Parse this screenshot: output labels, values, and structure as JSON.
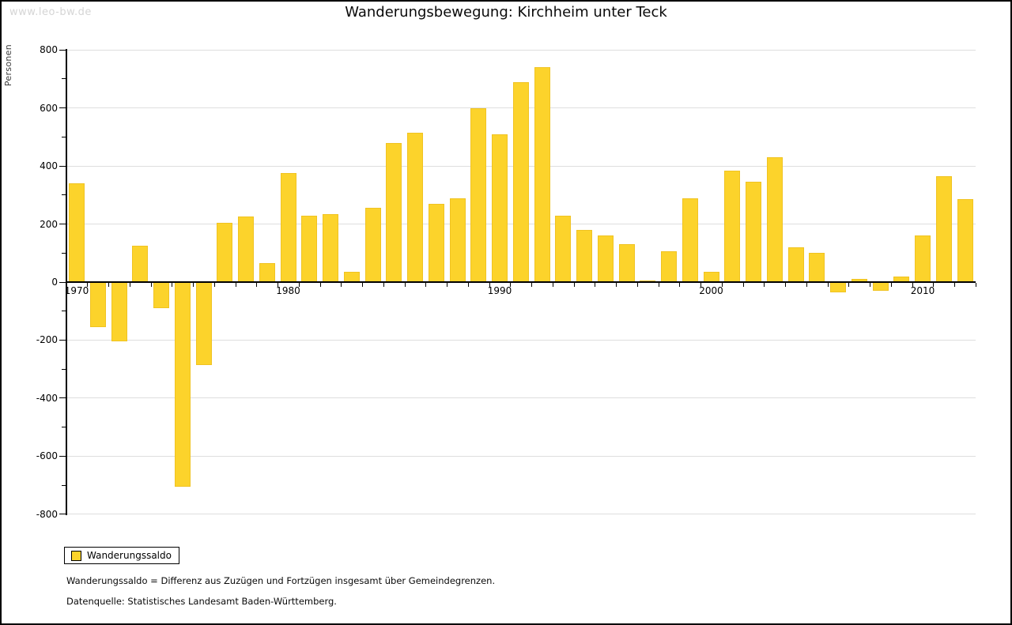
{
  "page": {
    "watermark": "www.leo-bw.de",
    "title": "Wanderungsbewegung: Kirchheim unter Teck"
  },
  "chart_data": {
    "type": "bar",
    "title": "Wanderungsbewegung: Kirchheim unter Teck",
    "xlabel": "",
    "ylabel": "Personen",
    "series_name": "Wanderungssaldo",
    "bar_color": "#FCD32B",
    "bar_border_color": "#F0C322",
    "grid": true,
    "gridline_color": "#DEDEDE",
    "ylim": [
      -800,
      800
    ],
    "y_tick_step": 200,
    "y_minor_tick_step": 100,
    "x_axis_decade_labels": [
      "1970",
      "1980",
      "1990",
      "2000",
      "2010"
    ],
    "legend_position": "bottom-left",
    "years": [
      1970,
      1971,
      1972,
      1973,
      1974,
      1975,
      1976,
      1977,
      1978,
      1979,
      1980,
      1981,
      1982,
      1983,
      1984,
      1985,
      1986,
      1987,
      1988,
      1989,
      1990,
      1991,
      1992,
      1993,
      1994,
      1995,
      1996,
      1997,
      1998,
      1999,
      2000,
      2001,
      2002,
      2003,
      2004,
      2005,
      2006,
      2007,
      2008,
      2009,
      2010,
      2011,
      2012
    ],
    "values": [
      340,
      -155,
      -205,
      125,
      -90,
      -705,
      -285,
      205,
      225,
      65,
      375,
      230,
      235,
      35,
      255,
      480,
      515,
      270,
      290,
      600,
      510,
      690,
      740,
      230,
      180,
      160,
      130,
      5,
      105,
      290,
      35,
      385,
      345,
      430,
      120,
      100,
      -35,
      10,
      -30,
      20,
      160,
      365,
      285
    ]
  },
  "legend": {
    "label": "Wanderungssaldo"
  },
  "footnotes": {
    "definition": "Wanderungssaldo = Differenz aus Zuzügen und Fortzügen insgesamt über Gemeindegrenzen.",
    "source": "Datenquelle: Statistisches Landesamt Baden-Württemberg."
  }
}
